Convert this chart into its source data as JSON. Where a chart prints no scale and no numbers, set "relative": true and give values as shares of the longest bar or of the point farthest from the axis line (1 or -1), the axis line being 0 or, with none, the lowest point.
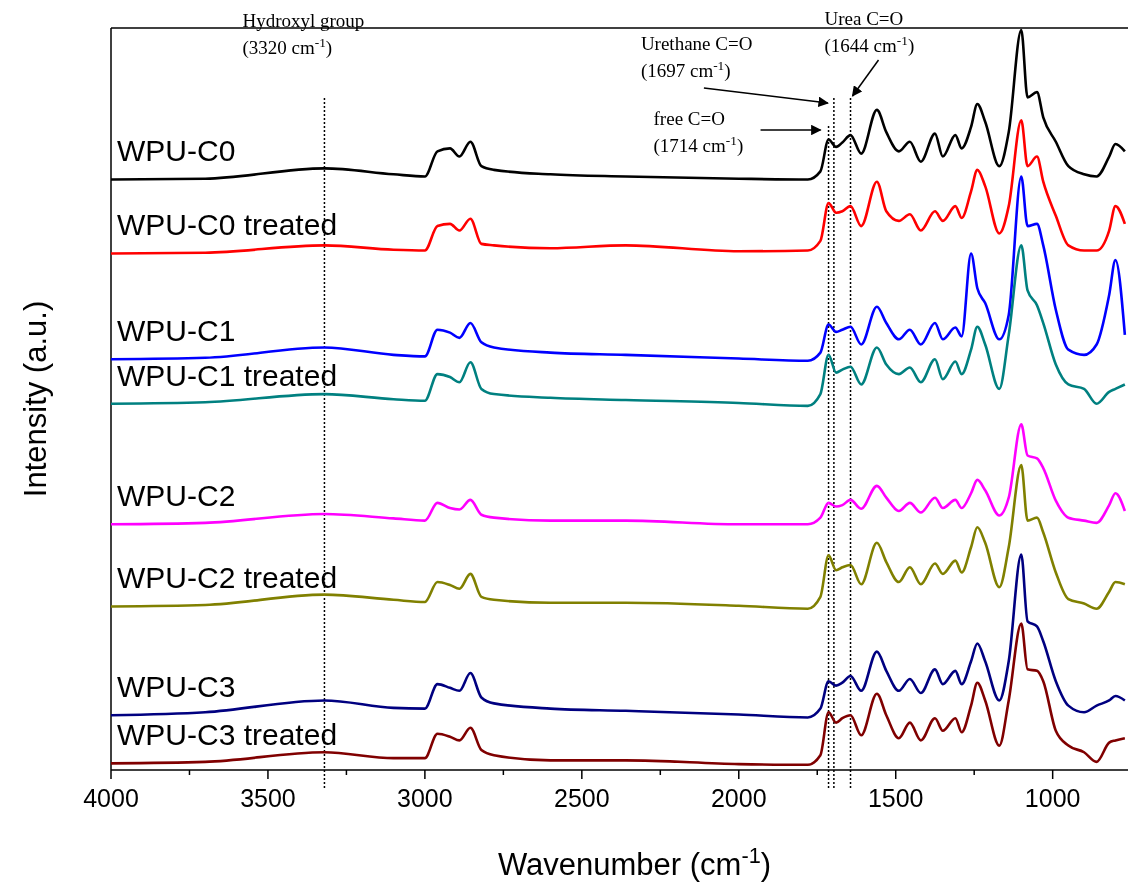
{
  "chart_data": {
    "type": "line",
    "relative": true,
    "xlabel": "Wavenumber (cm$^{-1}$)",
    "ylabel": "Intensity (a.u.)",
    "xlim": [
      4000,
      760
    ],
    "xticks": [
      4000,
      {
        "value": 3750,
        "label": null
      },
      3500,
      {
        "value": 3250,
        "label": null
      },
      3000,
      {
        "value": 2750,
        "label": null
      },
      2500,
      {
        "value": 2250,
        "label": null
      },
      2000,
      {
        "value": 1750,
        "label": null
      },
      1500,
      {
        "value": 1250,
        "label": null
      },
      1000
    ],
    "line_style": "solid",
    "marker": "none",
    "x": [
      4000,
      3700,
      3320,
      3100,
      3000,
      2960,
      2920,
      2890,
      2855,
      2820,
      2780,
      2600,
      2360,
      2000,
      1780,
      1740,
      1714,
      1690,
      1670,
      1644,
      1610,
      1560,
      1530,
      1490,
      1455,
      1420,
      1375,
      1350,
      1310,
      1290,
      1260,
      1240,
      1215,
      1170,
      1140,
      1100,
      1080,
      1050,
      1030,
      990,
      950,
      900,
      860,
      820,
      800,
      770
    ],
    "series": [
      {
        "name": "WPU-C0",
        "color": "#000000",
        "values": [
          0.798,
          0.799,
          0.813,
          0.805,
          0.802,
          0.836,
          0.84,
          0.829,
          0.849,
          0.816,
          0.811,
          0.805,
          0.802,
          0.799,
          0.798,
          0.809,
          0.852,
          0.842,
          0.848,
          0.858,
          0.833,
          0.892,
          0.862,
          0.836,
          0.849,
          0.822,
          0.86,
          0.829,
          0.858,
          0.84,
          0.869,
          0.9,
          0.876,
          0.816,
          0.862,
          1,
          0.909,
          0.916,
          0.882,
          0.849,
          0.816,
          0.805,
          0.802,
          0.829,
          0.846,
          0.836
        ]
      },
      {
        "name": "WPU-C0 treated",
        "color": "#ff0000",
        "values": [
          0.698,
          0.699,
          0.709,
          0.703,
          0.702,
          0.735,
          0.738,
          0.729,
          0.745,
          0.711,
          0.709,
          0.705,
          0.709,
          0.701,
          0.702,
          0.715,
          0.766,
          0.753,
          0.755,
          0.762,
          0.735,
          0.795,
          0.755,
          0.742,
          0.751,
          0.729,
          0.755,
          0.742,
          0.762,
          0.746,
          0.782,
          0.811,
          0.789,
          0.725,
          0.762,
          0.878,
          0.816,
          0.829,
          0.795,
          0.749,
          0.709,
          0.702,
          0.702,
          0.729,
          0.762,
          0.738
        ]
      },
      {
        "name": "WPU-C1",
        "color": "#0000ff",
        "values": [
          0.555,
          0.557,
          0.571,
          0.561,
          0.559,
          0.595,
          0.591,
          0.584,
          0.604,
          0.578,
          0.571,
          0.564,
          0.561,
          0.556,
          0.553,
          0.564,
          0.602,
          0.592,
          0.595,
          0.599,
          0.575,
          0.626,
          0.604,
          0.582,
          0.595,
          0.575,
          0.604,
          0.582,
          0.598,
          0.586,
          0.698,
          0.651,
          0.631,
          0.582,
          0.615,
          0.802,
          0.735,
          0.738,
          0.709,
          0.622,
          0.568,
          0.561,
          0.575,
          0.642,
          0.689,
          0.588
        ]
      },
      {
        "name": "WPU-C1 treated",
        "color": "#008080",
        "values": [
          0.495,
          0.497,
          0.508,
          0.501,
          0.499,
          0.535,
          0.531,
          0.524,
          0.551,
          0.515,
          0.508,
          0.503,
          0.5,
          0.496,
          0.492,
          0.508,
          0.561,
          0.537,
          0.541,
          0.545,
          0.521,
          0.571,
          0.548,
          0.535,
          0.544,
          0.524,
          0.555,
          0.528,
          0.552,
          0.535,
          0.568,
          0.599,
          0.575,
          0.515,
          0.588,
          0.709,
          0.648,
          0.628,
          0.604,
          0.548,
          0.521,
          0.515,
          0.495,
          0.511,
          0.515,
          0.521
        ]
      },
      {
        "name": "WPU-C2",
        "color": "#ff00ff",
        "values": [
          0.332,
          0.334,
          0.346,
          0.34,
          0.337,
          0.361,
          0.354,
          0.352,
          0.365,
          0.345,
          0.341,
          0.337,
          0.337,
          0.332,
          0.332,
          0.341,
          0.361,
          0.356,
          0.358,
          0.365,
          0.353,
          0.384,
          0.368,
          0.35,
          0.361,
          0.348,
          0.368,
          0.354,
          0.365,
          0.354,
          0.374,
          0.392,
          0.378,
          0.344,
          0.368,
          0.467,
          0.425,
          0.421,
          0.408,
          0.364,
          0.341,
          0.337,
          0.334,
          0.358,
          0.374,
          0.35
        ]
      },
      {
        "name": "WPU-C2 treated",
        "color": "#808000",
        "values": [
          0.221,
          0.223,
          0.237,
          0.23,
          0.227,
          0.254,
          0.25,
          0.245,
          0.265,
          0.234,
          0.23,
          0.226,
          0.226,
          0.222,
          0.218,
          0.234,
          0.29,
          0.27,
          0.274,
          0.277,
          0.251,
          0.307,
          0.281,
          0.254,
          0.274,
          0.251,
          0.279,
          0.265,
          0.283,
          0.267,
          0.301,
          0.328,
          0.307,
          0.247,
          0.301,
          0.412,
          0.337,
          0.341,
          0.321,
          0.267,
          0.231,
          0.225,
          0.218,
          0.241,
          0.254,
          0.251
        ]
      },
      {
        "name": "WPU-C3",
        "color": "#000080",
        "values": [
          0.074,
          0.078,
          0.094,
          0.084,
          0.083,
          0.116,
          0.111,
          0.107,
          0.131,
          0.098,
          0.09,
          0.083,
          0.08,
          0.075,
          0.071,
          0.083,
          0.12,
          0.114,
          0.118,
          0.127,
          0.107,
          0.16,
          0.134,
          0.107,
          0.123,
          0.104,
          0.136,
          0.116,
          0.134,
          0.116,
          0.147,
          0.171,
          0.147,
          0.094,
          0.147,
          0.291,
          0.201,
          0.194,
          0.174,
          0.12,
          0.087,
          0.078,
          0.087,
          0.094,
          0.1,
          0.094
        ]
      },
      {
        "name": "WPU-C3 treated",
        "color": "#800000",
        "values": [
          0.009,
          0.011,
          0.024,
          0.016,
          0.016,
          0.049,
          0.045,
          0.04,
          0.057,
          0.027,
          0.02,
          0.013,
          0.013,
          0.008,
          0.007,
          0.02,
          0.078,
          0.064,
          0.07,
          0.074,
          0.047,
          0.103,
          0.074,
          0.043,
          0.064,
          0.04,
          0.07,
          0.053,
          0.07,
          0.051,
          0.087,
          0.118,
          0.094,
          0.033,
          0.094,
          0.198,
          0.136,
          0.134,
          0.12,
          0.053,
          0.033,
          0.024,
          0.011,
          0.037,
          0.04,
          0.043
        ]
      }
    ],
    "ref_lines": [
      {
        "axis": "x",
        "value": 3320,
        "label": "Hydroxyl group\n(3320 cm$^{-1}$)",
        "line_style": "dotted",
        "color": "#000000"
      },
      {
        "axis": "x",
        "value": 1714,
        "label": "free C=O\n(1714 cm$^{-1}$)",
        "line_style": "dotted",
        "color": "#000000"
      },
      {
        "axis": "x",
        "value": 1697,
        "label": "Urethane C=O\n(1697 cm$^{-1}$)",
        "line_style": "dotted",
        "color": "#000000"
      },
      {
        "axis": "x",
        "value": 1644,
        "label": "Urea C=O\n(1644 cm$^{-1}$)",
        "line_style": "dotted",
        "color": "#000000"
      }
    ]
  }
}
